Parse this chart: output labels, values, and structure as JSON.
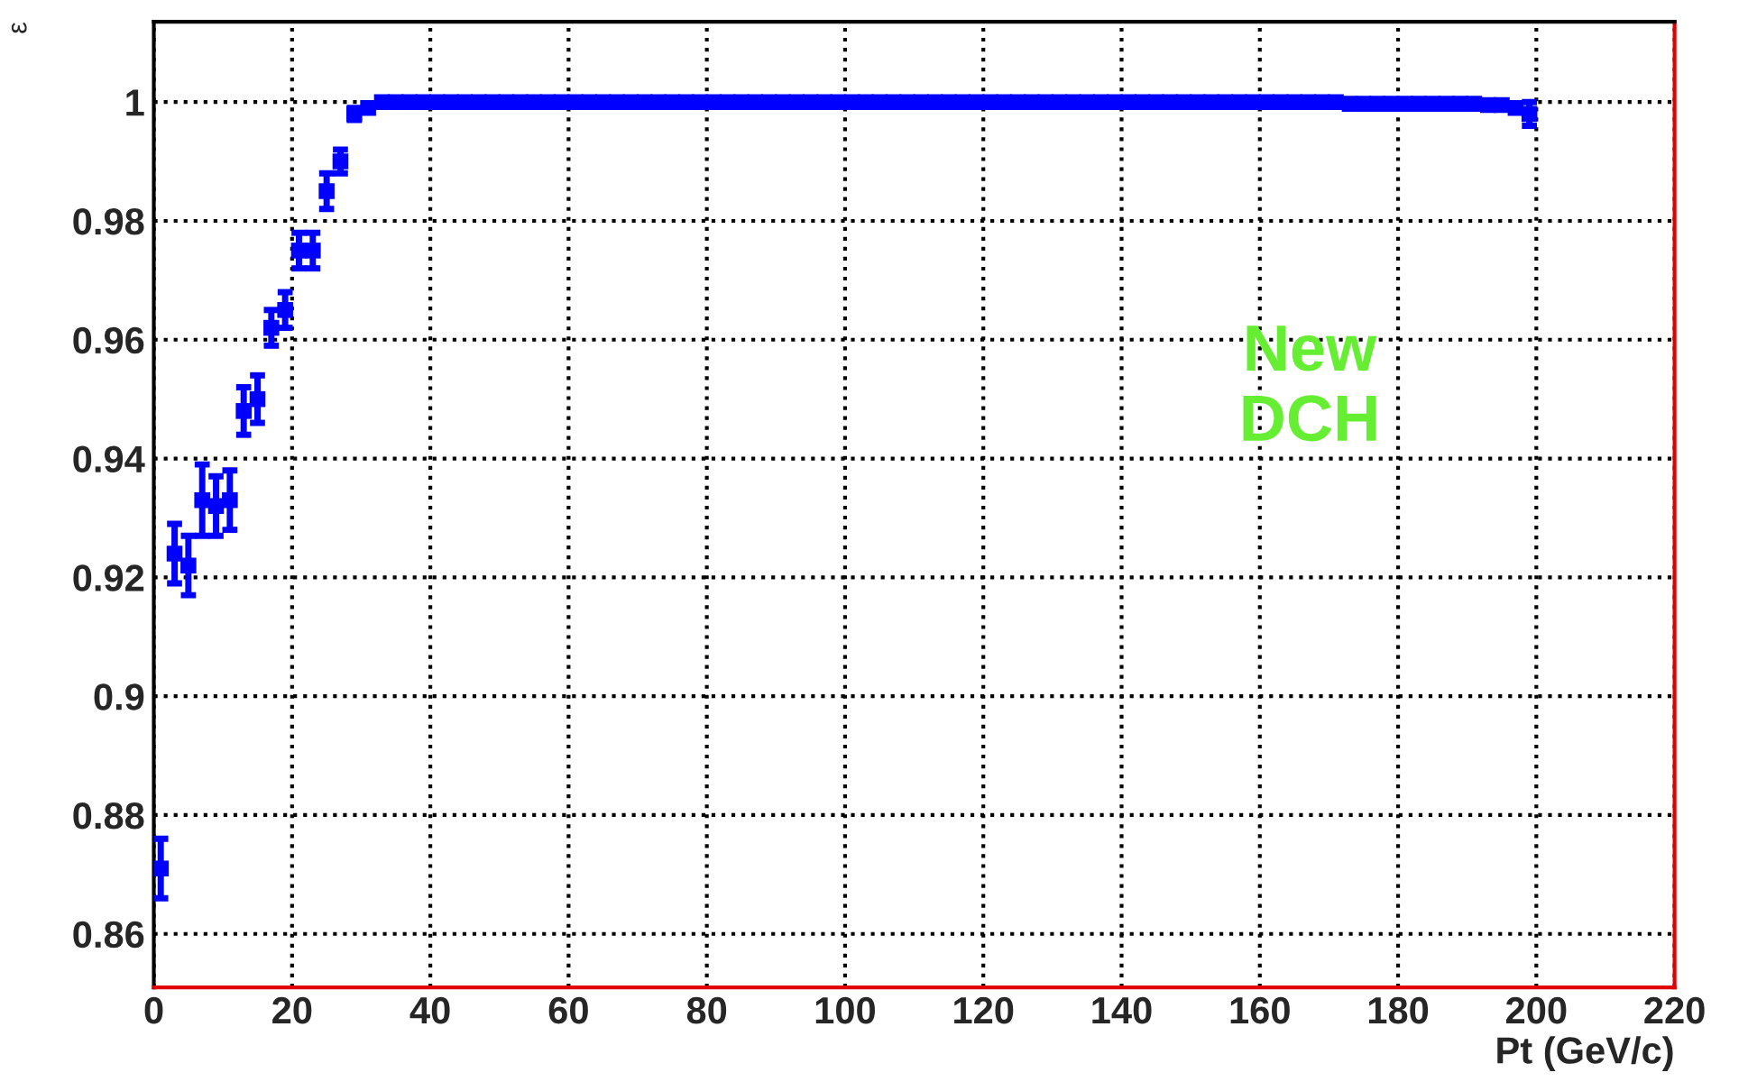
{
  "chart_data": {
    "type": "scatter",
    "xlabel": "Pt (GeV/c)",
    "ylabel": "ε",
    "x": [
      1,
      3,
      5,
      7,
      9,
      11,
      13,
      15,
      17,
      19,
      21,
      23,
      25,
      27,
      29,
      31,
      33,
      35,
      37,
      39,
      41,
      43,
      45,
      47,
      49,
      51,
      53,
      55,
      57,
      59,
      61,
      63,
      65,
      67,
      69,
      71,
      73,
      75,
      77,
      79,
      81,
      83,
      85,
      87,
      89,
      91,
      93,
      95,
      97,
      99,
      101,
      103,
      105,
      107,
      109,
      111,
      113,
      115,
      117,
      119,
      121,
      123,
      125,
      127,
      129,
      131,
      133,
      135,
      137,
      139,
      141,
      143,
      145,
      147,
      149,
      151,
      153,
      155,
      157,
      159,
      161,
      163,
      165,
      167,
      169,
      171,
      173,
      175,
      177,
      179,
      181,
      183,
      185,
      187,
      189,
      191,
      193,
      195,
      197,
      199
    ],
    "series": [
      {
        "color": "#0000ff",
        "values": [
          0.871,
          0.924,
          0.922,
          0.933,
          0.932,
          0.933,
          0.948,
          0.95,
          0.962,
          0.965,
          0.975,
          0.975,
          0.985,
          0.99,
          0.998,
          0.999,
          1,
          1,
          1,
          1,
          1,
          1,
          1,
          1,
          1,
          1,
          1,
          1,
          1,
          1,
          1,
          1,
          1,
          1,
          1,
          1,
          1,
          1,
          1,
          1,
          1,
          1,
          1,
          1,
          1,
          1,
          1,
          1,
          1,
          1,
          1,
          1,
          1,
          1,
          1,
          1,
          1,
          1,
          1,
          1,
          1,
          1,
          1,
          1,
          1,
          1,
          1,
          1,
          1,
          1,
          1,
          1,
          1,
          1,
          1,
          1,
          1,
          1,
          1,
          1,
          1,
          1,
          1,
          1,
          1,
          1,
          0.9997,
          0.9997,
          0.9997,
          0.9997,
          0.9997,
          0.9997,
          0.9997,
          0.9997,
          0.9997,
          0.9997,
          0.9995,
          0.9995,
          0.999,
          0.998
        ],
        "errors": [
          0.005,
          0.005,
          0.005,
          0.006,
          0.005,
          0.005,
          0.004,
          0.004,
          0.003,
          0.003,
          0.003,
          0.003,
          0.003,
          0.002,
          0.001,
          null,
          null,
          null,
          null,
          null,
          null,
          null,
          null,
          null,
          null,
          null,
          null,
          null,
          null,
          null,
          null,
          null,
          null,
          null,
          null,
          null,
          null,
          null,
          null,
          null,
          null,
          null,
          null,
          null,
          null,
          null,
          null,
          null,
          null,
          null,
          null,
          null,
          null,
          null,
          null,
          null,
          null,
          null,
          null,
          null,
          null,
          null,
          null,
          null,
          null,
          null,
          null,
          null,
          null,
          null,
          null,
          null,
          null,
          null,
          null,
          null,
          null,
          null,
          null,
          null,
          null,
          null,
          null,
          null,
          null,
          null,
          null,
          null,
          null,
          null,
          null,
          null,
          null,
          null,
          null,
          null,
          null,
          null,
          null,
          0.002
        ]
      }
    ],
    "xlim": [
      0,
      220
    ],
    "xticks": [
      0,
      20,
      40,
      60,
      80,
      100,
      120,
      140,
      160,
      180,
      200,
      220
    ],
    "ylim": [
      0.851,
      1.0135
    ],
    "yticks": [
      0.86,
      0.88,
      0.9,
      0.92,
      0.94,
      0.96,
      0.98,
      1
    ],
    "grid": true,
    "marker": "square",
    "legend": false,
    "annotations": [
      "New\nDCH"
    ]
  }
}
